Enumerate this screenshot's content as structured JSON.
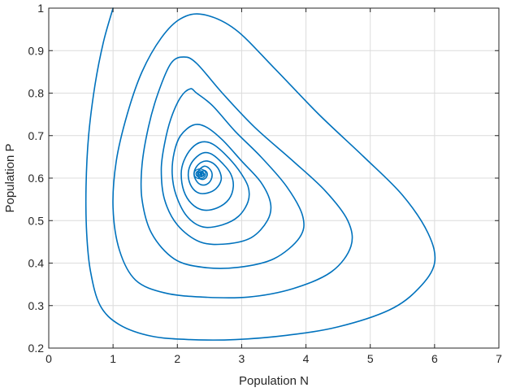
{
  "chart_data": {
    "type": "line",
    "title": "",
    "xlabel": "Population N",
    "ylabel": "Population P",
    "xlim": [
      0,
      7
    ],
    "ylim": [
      0.2,
      1
    ],
    "grid": true,
    "x_ticks": [
      0,
      1,
      2,
      3,
      4,
      5,
      6,
      7
    ],
    "y_ticks": [
      0.2,
      0.3,
      0.4,
      0.5,
      0.6,
      0.7,
      0.8,
      0.9,
      1
    ],
    "series_color": "#0072BD",
    "series": [
      {
        "description": "phase-plane trajectory spiraling inward to an equilibrium near (2.35, 0.61)",
        "start": [
          1.0,
          1.0
        ],
        "equilibrium": [
          2.35,
          0.61
        ],
        "points": [
          [
            1.0,
            1.0
          ],
          [
            0.85,
            0.92
          ],
          [
            0.72,
            0.82
          ],
          [
            0.62,
            0.7
          ],
          [
            0.58,
            0.58
          ],
          [
            0.59,
            0.47
          ],
          [
            0.65,
            0.38
          ],
          [
            0.8,
            0.3
          ],
          [
            1.1,
            0.255
          ],
          [
            1.6,
            0.228
          ],
          [
            2.2,
            0.22
          ],
          [
            2.9,
            0.22
          ],
          [
            3.7,
            0.23
          ],
          [
            4.5,
            0.25
          ],
          [
            5.3,
            0.29
          ],
          [
            5.75,
            0.34
          ],
          [
            6.0,
            0.4
          ],
          [
            5.9,
            0.47
          ],
          [
            5.5,
            0.56
          ],
          [
            4.9,
            0.65
          ],
          [
            4.2,
            0.75
          ],
          [
            3.5,
            0.86
          ],
          [
            2.9,
            0.95
          ],
          [
            2.4,
            0.985
          ],
          [
            2.05,
            0.975
          ],
          [
            1.75,
            0.93
          ],
          [
            1.45,
            0.85
          ],
          [
            1.22,
            0.75
          ],
          [
            1.05,
            0.64
          ],
          [
            1.0,
            0.53
          ],
          [
            1.1,
            0.43
          ],
          [
            1.35,
            0.36
          ],
          [
            1.8,
            0.33
          ],
          [
            2.4,
            0.32
          ],
          [
            3.1,
            0.32
          ],
          [
            3.8,
            0.34
          ],
          [
            4.4,
            0.38
          ],
          [
            4.7,
            0.44
          ],
          [
            4.65,
            0.5
          ],
          [
            4.3,
            0.57
          ],
          [
            3.8,
            0.64
          ],
          [
            3.2,
            0.72
          ],
          [
            2.7,
            0.8
          ],
          [
            2.3,
            0.87
          ],
          [
            2.1,
            0.885
          ],
          [
            1.9,
            0.87
          ],
          [
            1.7,
            0.8
          ],
          [
            1.55,
            0.72
          ],
          [
            1.45,
            0.63
          ],
          [
            1.45,
            0.55
          ],
          [
            1.6,
            0.47
          ],
          [
            1.95,
            0.41
          ],
          [
            2.4,
            0.39
          ],
          [
            2.95,
            0.39
          ],
          [
            3.5,
            0.41
          ],
          [
            3.9,
            0.46
          ],
          [
            3.95,
            0.51
          ],
          [
            3.7,
            0.58
          ],
          [
            3.3,
            0.65
          ],
          [
            2.9,
            0.71
          ],
          [
            2.55,
            0.77
          ],
          [
            2.3,
            0.8
          ],
          [
            2.2,
            0.81
          ],
          [
            2.05,
            0.79
          ],
          [
            1.9,
            0.74
          ],
          [
            1.8,
            0.68
          ],
          [
            1.75,
            0.62
          ],
          [
            1.8,
            0.55
          ],
          [
            2.0,
            0.49
          ],
          [
            2.35,
            0.45
          ],
          [
            2.75,
            0.445
          ],
          [
            3.15,
            0.46
          ],
          [
            3.4,
            0.5
          ],
          [
            3.45,
            0.54
          ],
          [
            3.3,
            0.59
          ],
          [
            3.0,
            0.64
          ],
          [
            2.7,
            0.69
          ],
          [
            2.45,
            0.72
          ],
          [
            2.25,
            0.725
          ],
          [
            2.05,
            0.7
          ],
          [
            1.95,
            0.66
          ],
          [
            1.92,
            0.61
          ],
          [
            1.98,
            0.56
          ],
          [
            2.15,
            0.51
          ],
          [
            2.4,
            0.485
          ],
          [
            2.7,
            0.49
          ],
          [
            2.95,
            0.51
          ],
          [
            3.1,
            0.545
          ],
          [
            3.1,
            0.58
          ],
          [
            2.95,
            0.62
          ],
          [
            2.75,
            0.655
          ],
          [
            2.55,
            0.68
          ],
          [
            2.38,
            0.685
          ],
          [
            2.22,
            0.67
          ],
          [
            2.1,
            0.64
          ],
          [
            2.06,
            0.61
          ],
          [
            2.1,
            0.57
          ],
          [
            2.22,
            0.54
          ],
          [
            2.4,
            0.525
          ],
          [
            2.62,
            0.53
          ],
          [
            2.8,
            0.55
          ],
          [
            2.87,
            0.58
          ],
          [
            2.83,
            0.61
          ],
          [
            2.7,
            0.635
          ],
          [
            2.55,
            0.655
          ],
          [
            2.42,
            0.66
          ],
          [
            2.3,
            0.65
          ],
          [
            2.2,
            0.63
          ],
          [
            2.17,
            0.605
          ],
          [
            2.22,
            0.58
          ],
          [
            2.33,
            0.565
          ],
          [
            2.47,
            0.565
          ],
          [
            2.6,
            0.575
          ],
          [
            2.68,
            0.595
          ],
          [
            2.66,
            0.615
          ],
          [
            2.58,
            0.632
          ],
          [
            2.47,
            0.64
          ],
          [
            2.37,
            0.637
          ],
          [
            2.29,
            0.625
          ],
          [
            2.26,
            0.61
          ],
          [
            2.29,
            0.595
          ],
          [
            2.36,
            0.585
          ],
          [
            2.45,
            0.585
          ],
          [
            2.52,
            0.595
          ],
          [
            2.54,
            0.61
          ],
          [
            2.5,
            0.622
          ],
          [
            2.43,
            0.628
          ],
          [
            2.37,
            0.624
          ],
          [
            2.32,
            0.615
          ],
          [
            2.32,
            0.605
          ],
          [
            2.36,
            0.598
          ],
          [
            2.42,
            0.598
          ],
          [
            2.46,
            0.605
          ],
          [
            2.46,
            0.613
          ],
          [
            2.42,
            0.618
          ],
          [
            2.38,
            0.615
          ],
          [
            2.36,
            0.61
          ],
          [
            2.37,
            0.606
          ],
          [
            2.4,
            0.605
          ],
          [
            2.42,
            0.609
          ],
          [
            2.4,
            0.612
          ],
          [
            2.38,
            0.61
          ]
        ]
      }
    ]
  }
}
